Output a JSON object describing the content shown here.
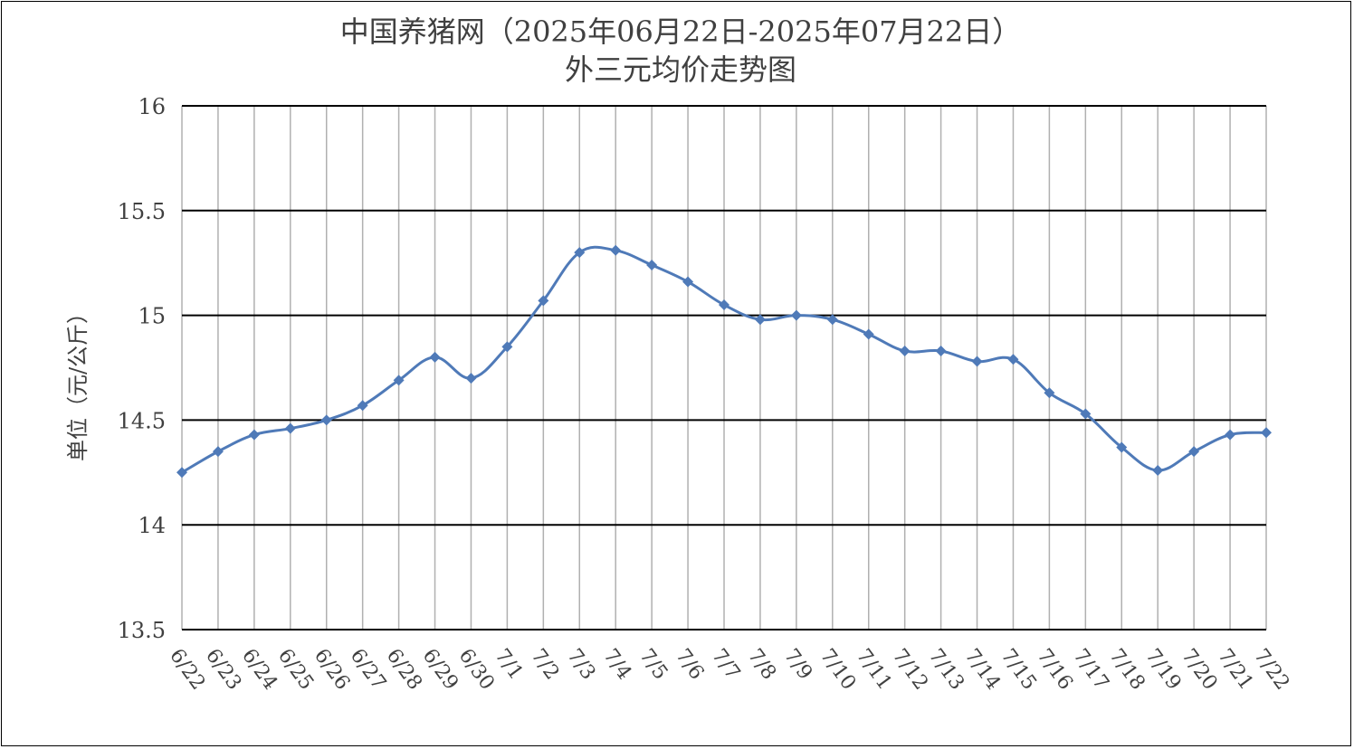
{
  "chart_data": {
    "type": "line",
    "title": "中国养猪网（2025年06月22日-2025年07月22日）",
    "subtitle": "外三元均价走势图",
    "xlabel": "",
    "ylabel": "单位（元/公斤）",
    "ylim": [
      13.5,
      16
    ],
    "yticks": [
      "13.5",
      "14",
      "14.5",
      "15",
      "15.5",
      "16"
    ],
    "ytick_values": [
      13.5,
      14,
      14.5,
      15,
      15.5,
      16
    ],
    "grid": true,
    "categories": [
      "6/22",
      "6/23",
      "6/24",
      "6/25",
      "6/26",
      "6/27",
      "6/28",
      "6/29",
      "6/30",
      "7/1",
      "7/2",
      "7/3",
      "7/4",
      "7/5",
      "7/6",
      "7/7",
      "7/8",
      "7/9",
      "7/10",
      "7/11",
      "7/12",
      "7/13",
      "7/14",
      "7/15",
      "7/16",
      "7/17",
      "7/18",
      "7/19",
      "7/20",
      "7/21",
      "7/22"
    ],
    "series": [
      {
        "name": "",
        "color": "#4F7AB8",
        "values": [
          14.25,
          14.35,
          14.43,
          14.46,
          14.5,
          14.57,
          14.69,
          14.8,
          14.7,
          14.85,
          15.07,
          15.3,
          15.31,
          15.24,
          15.16,
          15.05,
          14.98,
          15.0,
          14.98,
          14.91,
          14.83,
          14.83,
          14.78,
          14.79,
          14.63,
          14.53,
          14.37,
          14.26,
          14.35,
          14.43,
          14.44
        ]
      }
    ]
  }
}
